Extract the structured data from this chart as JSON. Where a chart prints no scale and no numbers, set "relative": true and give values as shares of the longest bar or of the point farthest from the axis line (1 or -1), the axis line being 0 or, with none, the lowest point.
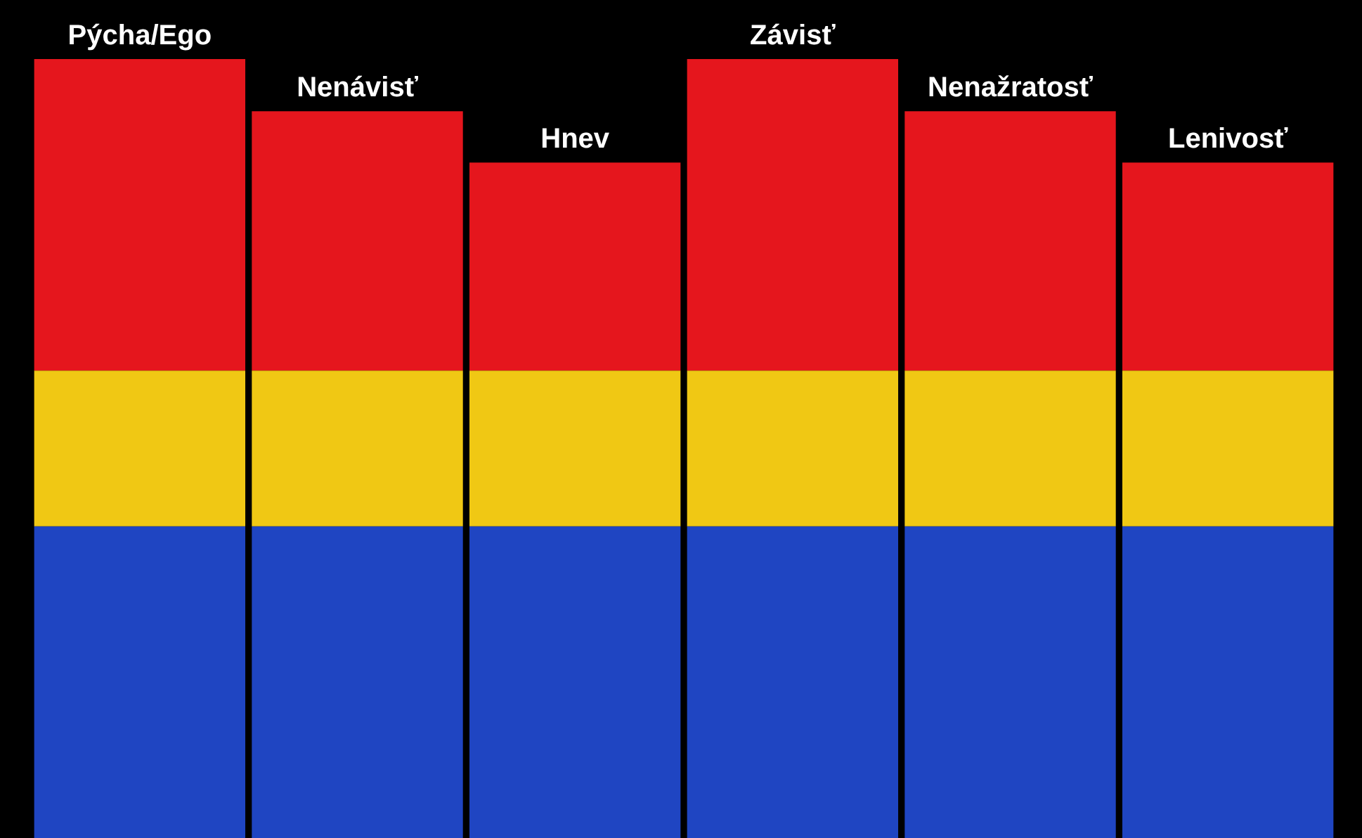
{
  "chart_data": {
    "type": "bar",
    "stacked": true,
    "relative": true,
    "legend": false,
    "categories": [
      "Pýcha/Ego",
      "Nenávisť",
      "Hnev",
      "Závisť",
      "Nenažratosť",
      "Lenivosť"
    ],
    "series": [
      {
        "color": "#1f45c2",
        "values": [
          0.4,
          0.4,
          0.4,
          0.4,
          0.4,
          0.4
        ]
      },
      {
        "color": "#f0c814",
        "values": [
          0.2,
          0.2,
          0.2,
          0.2,
          0.2,
          0.2
        ]
      },
      {
        "color": "#e5161d",
        "values": [
          0.4,
          0.333,
          0.267,
          0.4,
          0.333,
          0.267
        ]
      }
    ]
  }
}
